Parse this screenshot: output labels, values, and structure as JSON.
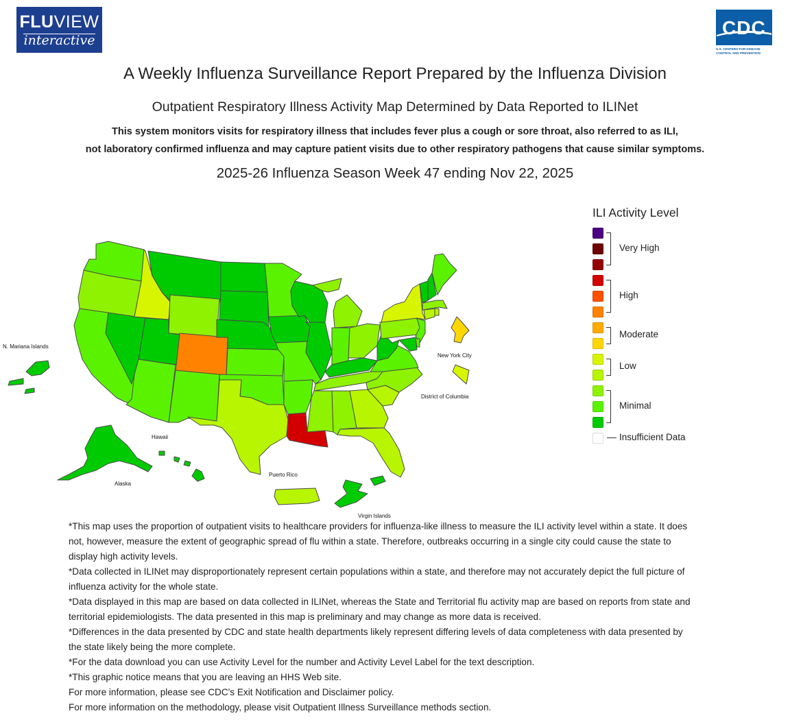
{
  "header": {
    "fluview_logo": {
      "line1_bold": "FLU",
      "line1_thin": "VIEW",
      "line2": "interactive"
    },
    "cdc_logo": {
      "word": "CDC",
      "sub1": "U.S. CENTERS FOR DISEASE",
      "sub2": "CONTROL AND PREVENTION"
    },
    "main_title": "A Weekly Influenza Surveillance Report Prepared by the Influenza Division",
    "sub_title": "Outpatient Respiratory Illness Activity Map Determined by Data Reported to ILINet",
    "description_line1": "This system monitors visits for respiratory illness that includes fever plus a cough or sore throat, also referred to as ILI,",
    "description_line2": "not laboratory confirmed influenza and may capture patient visits due to other respiratory pathogens that cause similar symptoms.",
    "week_title": "2025-26 Influenza Season Week 47 ending Nov 22, 2025"
  },
  "map": {
    "labels": {
      "mariana": "N. Mariana Islands",
      "nyc": "New York City",
      "dc": "District of Columbia",
      "hawaii": "Hawaii",
      "alaska": "Alaska",
      "puerto_rico": "Puerto Rico",
      "virgin_islands": "Virgin Islands"
    },
    "colors": {
      "WA": "#5bf200",
      "OR": "#8ef200",
      "CA": "#5bf200",
      "NV": "#00cb00",
      "ID": "#d8f500",
      "MT": "#00cb00",
      "WY": "#8ef200",
      "UT": "#00cb00",
      "AZ": "#5bf200",
      "CO": "#ff8200",
      "NM": "#5bf200",
      "ND": "#00cb00",
      "SD": "#00cb00",
      "NE": "#00cb00",
      "KS": "#5bf200",
      "OK": "#5bf200",
      "TX": "#b8f500",
      "MN": "#5bf200",
      "IA": "#00cb00",
      "MO": "#5bf200",
      "AR": "#5bf200",
      "LA": "#d20000",
      "WI": "#00cb00",
      "IL": "#00cb00",
      "MI": "#8ef200",
      "IN": "#5bf200",
      "OH": "#8ef200",
      "KY": "#00cb00",
      "TN": "#8ef200",
      "MS": "#8ef200",
      "AL": "#8ef200",
      "GA": "#b8f500",
      "FL": "#b8f500",
      "SC": "#b8f500",
      "NC": "#8ef200",
      "VA": "#5bf200",
      "WV": "#00cb00",
      "PA": "#8ef200",
      "NY": "#d8f500",
      "VT": "#00cb00",
      "NH": "#00cb00",
      "ME": "#5bf200",
      "MA": "#8ef200",
      "NJ": "#5bf200",
      "MD": "#00cb00",
      "DE": "#5bf200",
      "CT": "#b8f500",
      "RI": "#b8f500",
      "AK": "#00cb00",
      "HI": "#00cb00",
      "PR": "#b8f500",
      "VI": "#00cb00",
      "MP": "#00cb00",
      "NYC": "#ffd700",
      "DC": "#d8f500"
    }
  },
  "legend": {
    "title": "ILI Activity Level",
    "swatches": [
      "#4b0082",
      "#6f0000",
      "#940000",
      "#d20000",
      "#ff5000",
      "#ff8200",
      "#ffaa00",
      "#ffd700",
      "#d8f500",
      "#b8f500",
      "#8ef200",
      "#5bf200",
      "#00cb00",
      "#ffffff"
    ],
    "groups": [
      "Very High",
      "High",
      "Moderate",
      "Low",
      "Minimal",
      "Insufficient Data"
    ]
  },
  "notes": [
    "*This map uses the proportion of outpatient visits to healthcare providers for influenza-like illness to measure the ILI activity level within a state. It does not, however, measure the extent of geographic spread of flu within a state. Therefore, outbreaks occurring in a single city could cause the state to display high activity levels.",
    "*Data collected in ILINet may disproportionately represent certain populations within a state, and therefore may not accurately depict the full picture of influenza activity for the whole state.",
    "*Data displayed in this map are based on data collected in ILINet, whereas the State and Territorial flu activity map are based on reports from state and territorial epidemiologists. The data presented in this map is preliminary and may change as more data is received.",
    "*Differences in the data presented by CDC and state health departments likely represent differing levels of data completeness with data presented by the state likely being the more complete.",
    "*For the data download you can use Activity Level for the number and Activity Level Label for the text description.",
    "*This graphic notice means that you are leaving an HHS Web site.",
    "For more information, please see CDC's Exit Notification and Disclaimer policy.",
    "For more information on the methodology, please visit Outpatient Illness Surveillance methods section."
  ]
}
